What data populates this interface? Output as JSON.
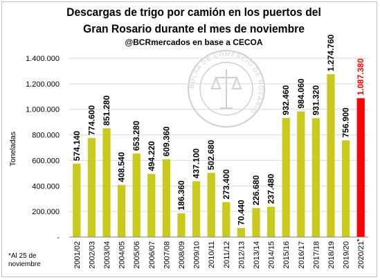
{
  "chart_data": {
    "type": "bar",
    "title": "Descargas de trigo por camión en los puertos del Gran Rosario durante el mes de noviembre",
    "subtitle": "@BCRmercados en base a CECOA",
    "ylabel": "Toneladas",
    "xlabel": "",
    "ylim": [
      0,
      1400000
    ],
    "yticks": [
      0,
      200000,
      400000,
      600000,
      800000,
      1000000,
      1200000,
      1400000
    ],
    "ytick_labels": [
      "-",
      "200.000",
      "400.000",
      "600.000",
      "800.000",
      "1.000.000",
      "1.200.000",
      "1.400.000"
    ],
    "grid": true,
    "categories": [
      "2001/02",
      "2002/03",
      "2003/04",
      "2004/05",
      "2005/06",
      "2006/07",
      "2007/08",
      "2008/09",
      "2009/10",
      "2010/11",
      "2011/12",
      "2012/13",
      "2013/14",
      "2014/15",
      "2015/16",
      "2016/17",
      "2017/18",
      "2018/19",
      "2019/20",
      "2020/21"
    ],
    "values": [
      574140,
      774600,
      851280,
      408540,
      653280,
      494220,
      609360,
      186360,
      437100,
      502680,
      273400,
      70440,
      226680,
      237480,
      932460,
      984060,
      931320,
      1274760,
      756900,
      1087380
    ],
    "value_labels": [
      "574.140",
      "774.600",
      "851.280",
      "408.540",
      "653.280",
      "494.220",
      "609.360",
      "186.360",
      "437.100",
      "502.680",
      "273.400",
      "70.440",
      "226.680",
      "237.480",
      "932.460",
      "984.060",
      "931.320",
      "1.274.760",
      "756.900",
      "1.087.380"
    ],
    "highlight_index": 19,
    "highlight_marker": "*",
    "colors": {
      "bar": "#c9c91e",
      "highlight": "#ff0000",
      "grid": "#d9d9d9",
      "axis": "#7f7f7f"
    }
  },
  "watermark": {
    "text": "BOLSA DE COMERCIO DE ROSARIO"
  },
  "footnote": "*Al 25 de noviembre"
}
